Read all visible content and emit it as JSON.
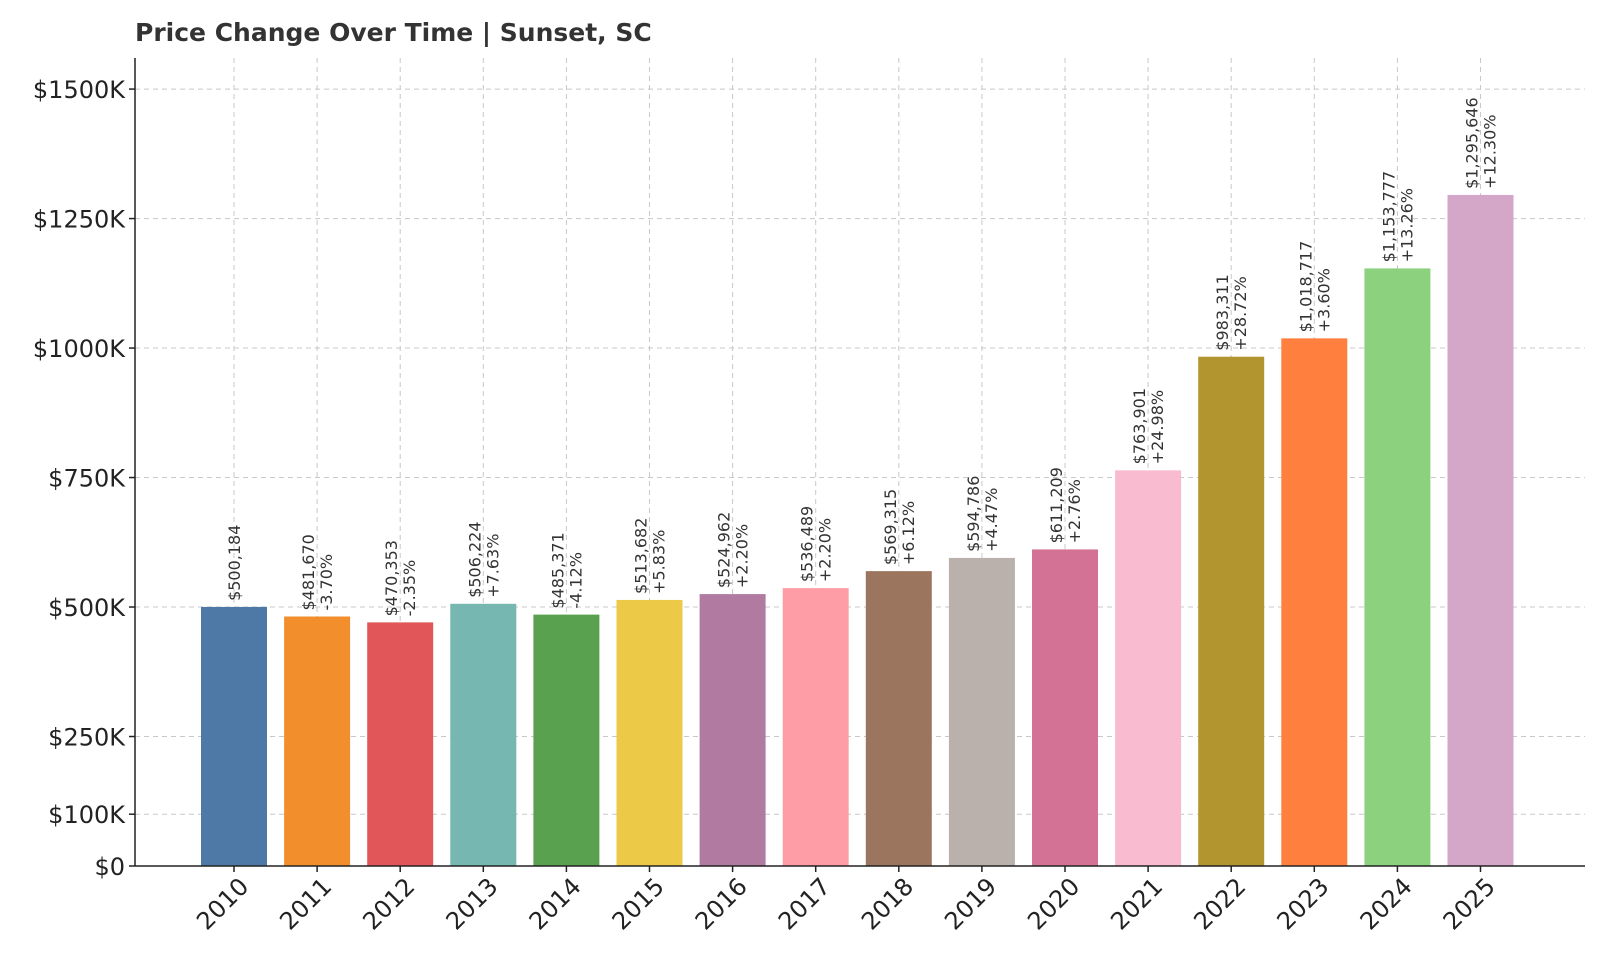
{
  "chart_data": {
    "type": "bar",
    "title": "Price Change Over Time | Sunset, SC",
    "xlabel": "",
    "ylabel": "",
    "categories": [
      "2010",
      "2011",
      "2012",
      "2013",
      "2014",
      "2015",
      "2016",
      "2017",
      "2018",
      "2019",
      "2020",
      "2021",
      "2022",
      "2023",
      "2024",
      "2025"
    ],
    "values": [
      500184,
      481670,
      470353,
      506224,
      485371,
      513682,
      524962,
      536489,
      569315,
      594786,
      611209,
      763901,
      983311,
      1018717,
      1153777,
      1295646
    ],
    "value_labels": [
      "$500,184",
      "$481,670",
      "$470,353",
      "$506,224",
      "$485,371",
      "$513,682",
      "$524,962",
      "$536,489",
      "$569,315",
      "$594,786",
      "$611,209",
      "$763,901",
      "$983,311",
      "$1,018,717",
      "$1,153,777",
      "$1,295,646"
    ],
    "change_labels": [
      "",
      "-3.70%",
      "-2.35%",
      "+7.63%",
      "-4.12%",
      "+5.83%",
      "+2.20%",
      "+2.20%",
      "+6.12%",
      "+4.47%",
      "+2.76%",
      "+24.98%",
      "+28.72%",
      "+3.60%",
      "+13.26%",
      "+12.30%"
    ],
    "colors": [
      "#4e79a7",
      "#f28e2b",
      "#e15759",
      "#76b7b2",
      "#59a14f",
      "#edc948",
      "#b07aa1",
      "#ff9da7",
      "#9c755f",
      "#bab0ac",
      "#d37295",
      "#f8bbd0",
      "#b39530",
      "#ff7f3f",
      "#8cd17d",
      "#d4a6c8"
    ],
    "y_ticks": [
      0,
      100000,
      250000,
      500000,
      750000,
      1000000,
      1250000,
      1500000
    ],
    "y_tick_labels": [
      "$0",
      "$100K",
      "$250K",
      "$500K",
      "$750K",
      "$1000K",
      "$1250K",
      "$1500K"
    ],
    "ylim": [
      0,
      1560000
    ],
    "grid": true,
    "grid_style": "dashed"
  }
}
